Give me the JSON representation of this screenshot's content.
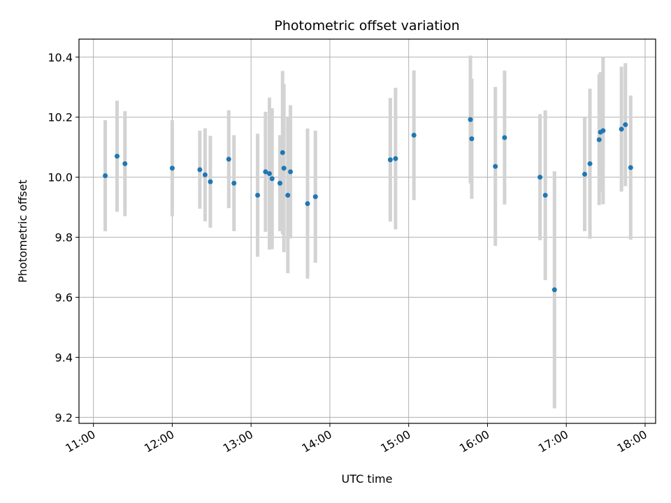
{
  "chart_data": {
    "type": "scatter",
    "title": "Photometric offset variation",
    "xlabel": "UTC time",
    "ylabel": "Photometric offset",
    "x_is_time": true,
    "xlim": [
      "10:49",
      "18:08"
    ],
    "ylim": [
      9.18,
      10.46
    ],
    "x_ticks": [
      "11:00",
      "12:00",
      "13:00",
      "14:00",
      "15:00",
      "16:00",
      "17:00",
      "18:00"
    ],
    "y_ticks": [
      9.2,
      9.4,
      9.6,
      9.8,
      10.0,
      10.2,
      10.4
    ],
    "grid": true,
    "point_color": "#1f77b4",
    "errorbar_color": "#d3d3d3",
    "points": [
      {
        "t": "11:09",
        "y": 10.005,
        "err": 0.185
      },
      {
        "t": "11:18",
        "y": 10.07,
        "err": 0.185
      },
      {
        "t": "11:24",
        "y": 10.045,
        "err": 0.175
      },
      {
        "t": "12:00",
        "y": 10.03,
        "err": 0.16
      },
      {
        "t": "12:21",
        "y": 10.025,
        "err": 0.13
      },
      {
        "t": "12:25",
        "y": 10.008,
        "err": 0.155
      },
      {
        "t": "12:29",
        "y": 9.985,
        "err": 0.153
      },
      {
        "t": "12:43",
        "y": 10.06,
        "err": 0.163
      },
      {
        "t": "12:47",
        "y": 9.98,
        "err": 0.16
      },
      {
        "t": "13:05",
        "y": 9.94,
        "err": 0.205
      },
      {
        "t": "13:11",
        "y": 10.018,
        "err": 0.2
      },
      {
        "t": "13:14",
        "y": 10.012,
        "err": 0.253
      },
      {
        "t": "13:16",
        "y": 9.995,
        "err": 0.235
      },
      {
        "t": "13:22",
        "y": 9.98,
        "err": 0.16
      },
      {
        "t": "13:24",
        "y": 10.082,
        "err": 0.272
      },
      {
        "t": "13:25",
        "y": 10.03,
        "err": 0.28
      },
      {
        "t": "13:28",
        "y": 9.94,
        "err": 0.26
      },
      {
        "t": "13:30",
        "y": 10.018,
        "err": 0.222
      },
      {
        "t": "13:43",
        "y": 9.912,
        "err": 0.25
      },
      {
        "t": "13:49",
        "y": 9.935,
        "err": 0.22
      },
      {
        "t": "14:46",
        "y": 10.058,
        "err": 0.206
      },
      {
        "t": "14:50",
        "y": 10.062,
        "err": 0.236
      },
      {
        "t": "15:04",
        "y": 10.14,
        "err": 0.216
      },
      {
        "t": "15:47",
        "y": 10.192,
        "err": 0.213
      },
      {
        "t": "15:48",
        "y": 10.128,
        "err": 0.2
      },
      {
        "t": "16:06",
        "y": 10.036,
        "err": 0.265
      },
      {
        "t": "16:13",
        "y": 10.132,
        "err": 0.223
      },
      {
        "t": "16:40",
        "y": 10.0,
        "err": 0.21
      },
      {
        "t": "16:44",
        "y": 9.94,
        "err": 0.283
      },
      {
        "t": "16:51",
        "y": 9.625,
        "err": 0.395
      },
      {
        "t": "17:14",
        "y": 10.01,
        "err": 0.19
      },
      {
        "t": "17:18",
        "y": 10.045,
        "err": 0.25
      },
      {
        "t": "17:25",
        "y": 10.125,
        "err": 0.218
      },
      {
        "t": "17:26",
        "y": 10.15,
        "err": 0.2
      },
      {
        "t": "17:28",
        "y": 10.155,
        "err": 0.245
      },
      {
        "t": "17:42",
        "y": 10.16,
        "err": 0.208
      },
      {
        "t": "17:45",
        "y": 10.175,
        "err": 0.205
      },
      {
        "t": "17:49",
        "y": 10.032,
        "err": 0.24
      }
    ]
  }
}
